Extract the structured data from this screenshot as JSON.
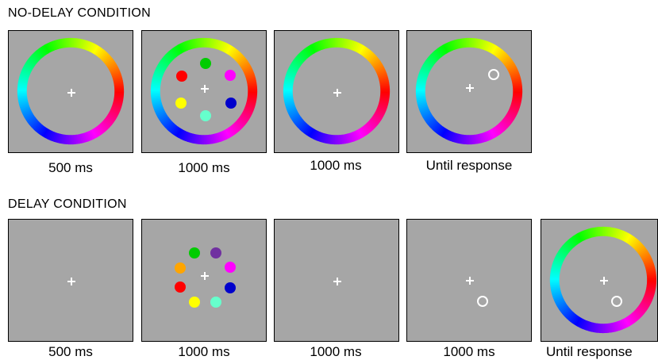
{
  "no_delay": {
    "heading": "NO-DELAY CONDITION",
    "durations": [
      "500 ms",
      "1000 ms",
      "1000 ms",
      "Until response"
    ]
  },
  "delay": {
    "heading": "DELAY CONDITION",
    "durations": [
      "500 ms",
      "1000 ms",
      "1000 ms",
      "1000 ms",
      "Until response"
    ]
  },
  "colors": {
    "panel_background": "#a6a6a6",
    "fixation_cross": "#ffffff",
    "probe_ring": "#ffffff"
  },
  "memory_array_no_delay": [
    "green",
    "magenta",
    "blue",
    "aquamarine",
    "yellow",
    "red"
  ],
  "memory_array_delay": [
    "green",
    "purple",
    "magenta",
    "blue",
    "aquamarine",
    "yellow",
    "red",
    "orange"
  ],
  "item_colors": {
    "green": "#00cc00",
    "purple": "#7030a0",
    "magenta": "#ff00ff",
    "blue": "#0000cc",
    "aquamarine": "#66ffcc",
    "yellow": "#ffff00",
    "red": "#ff0000",
    "orange": "#ffa500"
  }
}
